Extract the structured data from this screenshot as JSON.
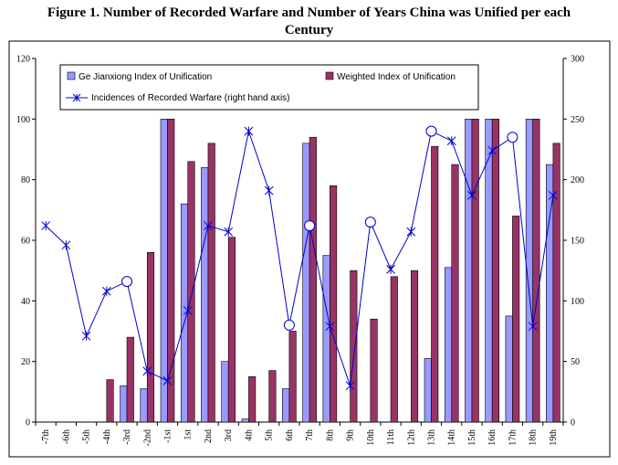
{
  "title_line1": "Figure 1. Number of Recorded Warfare and Number of Years China was Unified per each",
  "title_line2": "Century",
  "chart_data": {
    "type": "bar",
    "categories": [
      "-7th",
      "-6th",
      "-5th",
      "-4th",
      "-3rd",
      "-2nd",
      "-1st",
      "1st",
      "2nd",
      "3rd",
      "4th",
      "5th",
      "6th",
      "7th",
      "8th",
      "9th",
      "10th",
      "11th",
      "12th",
      "13th",
      "14th",
      "15th",
      "16th",
      "17th",
      "18th",
      "19th"
    ],
    "ylim_left": [
      0,
      120
    ],
    "ylim_right": [
      0,
      300
    ],
    "yticks_left": [
      "0",
      "20",
      "40",
      "60",
      "80",
      "100",
      "120"
    ],
    "yticks_right": [
      "0",
      "50",
      "100",
      "150",
      "200",
      "250",
      "300"
    ],
    "series": [
      {
        "name": "Ge Jianxiong Index of Unification",
        "axis": "left",
        "type": "bar",
        "color": "#9999ff",
        "values": [
          0,
          0,
          0,
          0,
          12,
          11,
          100,
          72,
          84,
          20,
          1,
          0,
          11,
          92,
          55,
          0,
          0,
          0,
          0,
          21,
          51,
          100,
          100,
          35,
          100,
          85
        ]
      },
      {
        "name": "Weighted Index of Unification",
        "axis": "left",
        "type": "bar",
        "color": "#993366",
        "values": [
          0,
          0,
          0,
          14,
          28,
          56,
          100,
          86,
          92,
          61,
          15,
          17,
          30,
          94,
          78,
          50,
          34,
          48,
          50,
          91,
          85,
          100,
          100,
          68,
          100,
          92
        ]
      },
      {
        "name": "Incidences of Recorded Warfare (right hand axis)",
        "axis": "right",
        "type": "line",
        "color": "#0000cc",
        "values": [
          162,
          146,
          71,
          108,
          116,
          42,
          34,
          92,
          162,
          157,
          240,
          191,
          80,
          162,
          79,
          30,
          165,
          126,
          157,
          240,
          232,
          187,
          224,
          235,
          79,
          187
        ],
        "markers": [
          "x",
          "x",
          "x",
          "x",
          "o",
          "x",
          "x",
          "x",
          "x",
          "x",
          "x",
          "x",
          "o",
          "o",
          "x",
          "x",
          "o",
          "x",
          "x",
          "o",
          "x",
          "x",
          "x",
          "o",
          "x",
          "x"
        ]
      }
    ],
    "legend_position": "top-center",
    "grid": false
  }
}
